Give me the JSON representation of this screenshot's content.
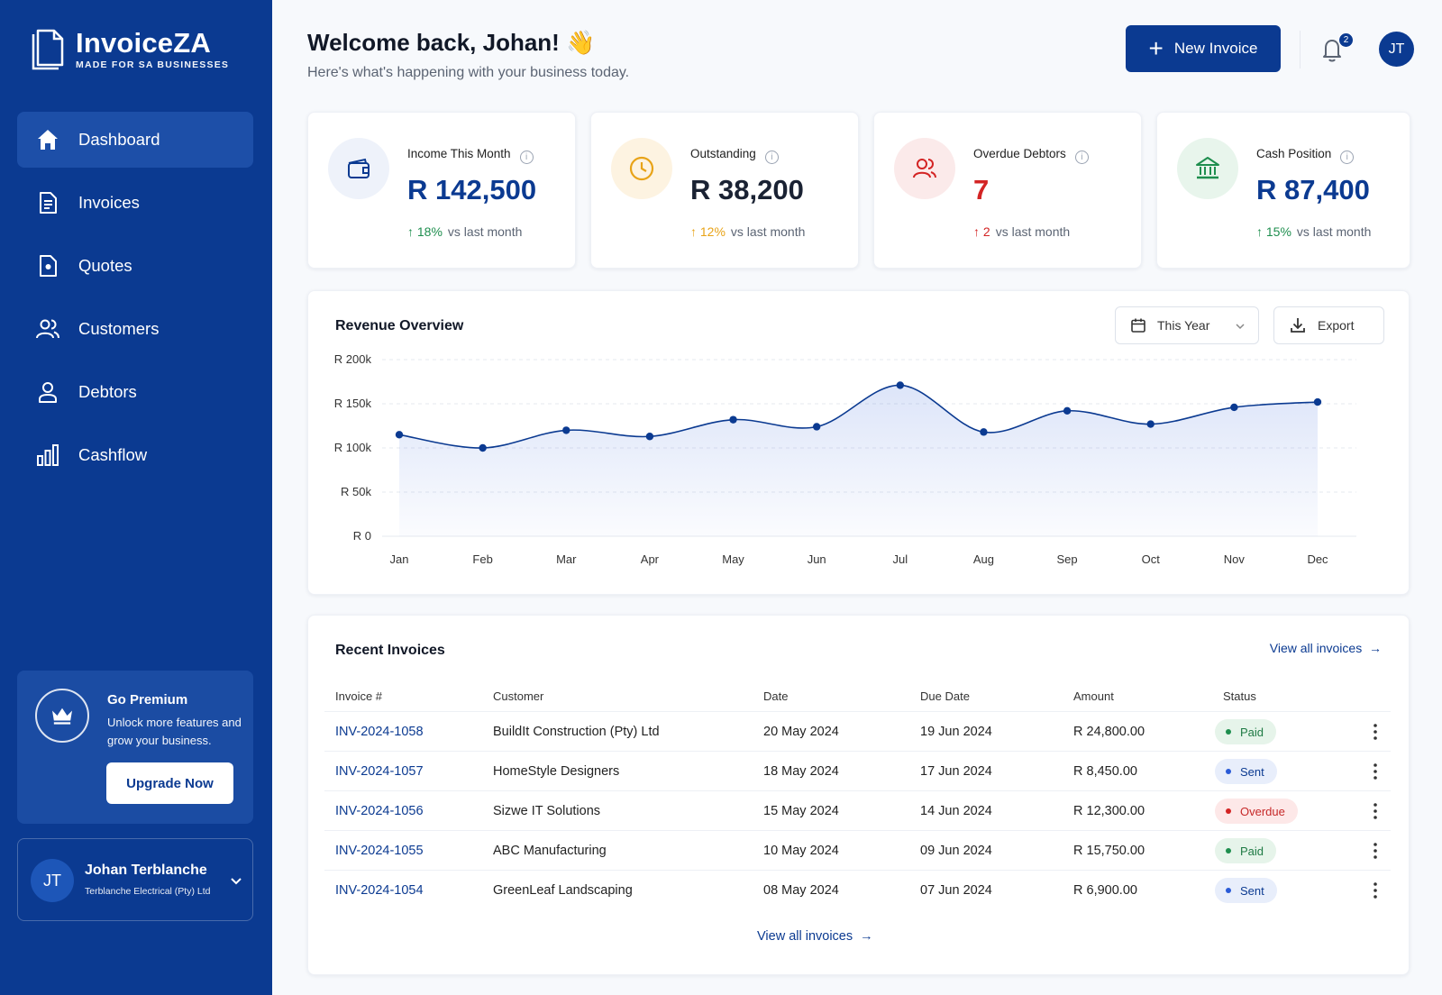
{
  "brand": {
    "name": "InvoiceZA",
    "tagline": "MADE FOR SA BUSINESSES"
  },
  "nav": {
    "items": [
      {
        "label": "Dashboard",
        "icon": "home-icon",
        "active": true
      },
      {
        "label": "Invoices",
        "icon": "invoice-doc-icon"
      },
      {
        "label": "Quotes",
        "icon": "quote-doc-icon"
      },
      {
        "label": "Customers",
        "icon": "users-icon"
      },
      {
        "label": "Debtors",
        "icon": "user-icon"
      },
      {
        "label": "Cashflow",
        "icon": "bar-chart-icon"
      }
    ]
  },
  "premium": {
    "title": "Go Premium",
    "description": "Unlock more features and grow your business.",
    "button": "Upgrade Now"
  },
  "user": {
    "initials": "JT",
    "name": "Johan Terblanche",
    "company": "Terblanche Electrical (Pty) Ltd"
  },
  "header": {
    "welcome": "Welcome back, Johan! 👋",
    "subtitle": "Here's what's happening with your business today.",
    "new_invoice": "New Invoice",
    "notification_count": "2",
    "avatar_initials": "JT"
  },
  "stats": [
    {
      "label": "Income This Month",
      "value": "R 142,500",
      "change": "18%",
      "change_text": "vs last month",
      "icon": "wallet-icon",
      "value_color": "#0b3a91",
      "change_color": "#1e8e4e",
      "circle_bg": "#eef2fa",
      "icon_color": "#0b3a91"
    },
    {
      "label": "Outstanding",
      "value": "R 38,200",
      "change": "12%",
      "change_text": "vs last month",
      "icon": "clock-icon",
      "value_color": "#1a2233",
      "change_color": "#e8a317",
      "circle_bg": "#fdf3e1",
      "icon_color": "#e8a317"
    },
    {
      "label": "Overdue Debtors",
      "value": "7",
      "change": "2",
      "change_text": "vs last month",
      "icon": "users-icon",
      "value_color": "#d32424",
      "change_color": "#d32424",
      "circle_bg": "#fbeaea",
      "icon_color": "#d32424"
    },
    {
      "label": "Cash Position",
      "value": "R 87,400",
      "change": "15%",
      "change_text": "vs last month",
      "icon": "bank-icon",
      "value_color": "#0b3a91",
      "change_color": "#1e8e4e",
      "circle_bg": "#e8f5ec",
      "icon_color": "#1e8e4e"
    }
  ],
  "revenue": {
    "title": "Revenue Overview",
    "period": "This Year",
    "export": "Export"
  },
  "chart_data": {
    "type": "area",
    "x": [
      "Jan",
      "Feb",
      "Mar",
      "Apr",
      "May",
      "Jun",
      "Jul",
      "Aug",
      "Sep",
      "Oct",
      "Nov",
      "Dec"
    ],
    "values": [
      115000,
      100000,
      120000,
      113000,
      132000,
      124000,
      171000,
      118000,
      142000,
      127000,
      146000,
      152000
    ],
    "y_tick_labels": [
      "R 0",
      "R 50k",
      "R 100k",
      "R 150k",
      "R 200k"
    ],
    "ylim": [
      0,
      200000
    ],
    "grid": true,
    "line_color": "#0b3a91"
  },
  "invoices": {
    "title": "Recent Invoices",
    "view_all": "View all invoices",
    "columns": [
      "Invoice #",
      "Customer",
      "Date",
      "Due Date",
      "Amount",
      "Status"
    ],
    "rows": [
      {
        "id": "INV-2024-1058",
        "customer": "BuildIt Construction (Pty) Ltd",
        "date": "20 May 2024",
        "due": "19 Jun 2024",
        "amount": "R 24,800.00",
        "status": "Paid"
      },
      {
        "id": "INV-2024-1057",
        "customer": "HomeStyle Designers",
        "date": "18 May 2024",
        "due": "17 Jun 2024",
        "amount": "R 8,450.00",
        "status": "Sent"
      },
      {
        "id": "INV-2024-1056",
        "customer": "Sizwe IT Solutions",
        "date": "15 May 2024",
        "due": "14 Jun 2024",
        "amount": "R 12,300.00",
        "status": "Overdue"
      },
      {
        "id": "INV-2024-1055",
        "customer": "ABC Manufacturing",
        "date": "10 May 2024",
        "due": "09 Jun 2024",
        "amount": "R 15,750.00",
        "status": "Paid"
      },
      {
        "id": "INV-2024-1054",
        "customer": "GreenLeaf Landscaping",
        "date": "08 May 2024",
        "due": "07 Jun 2024",
        "amount": "R 6,900.00",
        "status": "Sent"
      }
    ],
    "status_colors": {
      "Paid": {
        "bg": "#e6f4ea",
        "fg": "#1e7a44",
        "dot": "#1e8e4e"
      },
      "Sent": {
        "bg": "#e8eefb",
        "fg": "#0b3a91",
        "dot": "#2a5bd7"
      },
      "Overdue": {
        "bg": "#fde8e8",
        "fg": "#c62828",
        "dot": "#d32424"
      }
    }
  }
}
